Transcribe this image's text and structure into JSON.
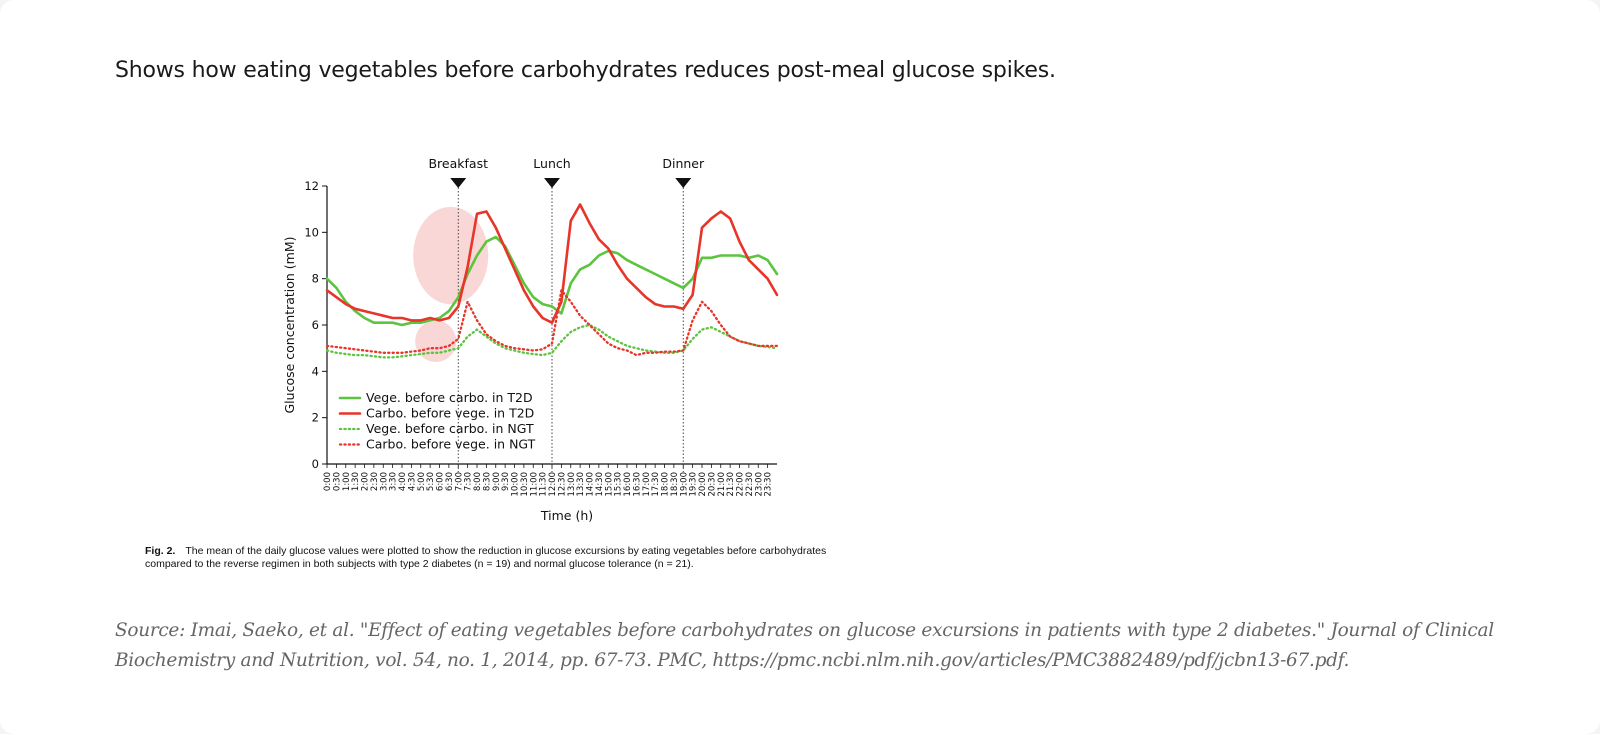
{
  "intro_text": "Shows how eating vegetables before carbohydrates reduces post-meal glucose spikes.",
  "figure_caption": {
    "label": "Fig. 2.",
    "line1": "The mean of the daily glucose values were plotted to show the reduction in glucose excursions by eating vegetables before carbohydrates",
    "line2": "compared to the reverse regimen in both subjects with type 2 diabetes (n = 19) and normal glucose tolerance (n = 21)."
  },
  "source": {
    "line1": "Source: Imai, Saeko, et al. \"Effect of eating vegetables before carbohydrates on glucose excursions in patients with type 2 diabetes.\" Journal of Clinical",
    "line2": "Biochemistry and Nutrition, vol. 54, no. 1, 2014, pp. 67-73. PMC, https://pmc.ncbi.nlm.nih.gov/articles/PMC3882489/pdf/jcbn13-67.pdf."
  },
  "colors": {
    "vege": "#5cc43f",
    "carbo": "#e8352a",
    "highlight": "#f8caca"
  },
  "chart_data": {
    "type": "line",
    "xlabel": "Time (h)",
    "ylabel": "Glucose concentration (mM)",
    "xlim": [
      0,
      24
    ],
    "ylim": [
      0,
      12
    ],
    "yticks": [
      0,
      2,
      4,
      6,
      8,
      10,
      12
    ],
    "xtick_labels": [
      "0:00",
      "0:30",
      "1:00",
      "1:30",
      "2:00",
      "2:30",
      "3:00",
      "3:30",
      "4:00",
      "4:30",
      "5:00",
      "5:30",
      "6:00",
      "6:30",
      "7:00",
      "7:30",
      "8:00",
      "8:30",
      "9:00",
      "9:30",
      "10:00",
      "10:30",
      "11:00",
      "11:30",
      "12:00",
      "12:30",
      "13:00",
      "13:30",
      "14:00",
      "14:30",
      "15:00",
      "15:30",
      "16:00",
      "16:30",
      "17:00",
      "17:30",
      "18:00",
      "18:30",
      "19:00",
      "19:30",
      "20:00",
      "20:30",
      "21:00",
      "21:30",
      "22:00",
      "22:30",
      "23:00",
      "23:30"
    ],
    "meals": [
      {
        "label": "Breakfast",
        "time": 7.0
      },
      {
        "label": "Lunch",
        "time": 12.0
      },
      {
        "label": "Dinner",
        "time": 19.0
      }
    ],
    "highlights": [
      {
        "cx": 6.6,
        "cy": 9.0,
        "rx": 2.0,
        "ry": 2.1
      },
      {
        "cx": 5.8,
        "cy": 5.3,
        "rx": 1.1,
        "ry": 0.9
      }
    ],
    "series": [
      {
        "name": "Vege. before carbo. in T2D",
        "style": "solid",
        "color": "#5cc43f",
        "x": [
          0,
          0.5,
          1,
          1.5,
          2,
          2.5,
          3,
          3.5,
          4,
          4.5,
          5,
          5.5,
          6,
          6.5,
          7,
          7.5,
          8,
          8.5,
          9,
          9.5,
          10,
          10.5,
          11,
          11.5,
          12,
          12.5,
          13,
          13.5,
          14,
          14.5,
          15,
          15.5,
          16,
          16.5,
          17,
          17.5,
          18,
          18.5,
          19,
          19.5,
          20,
          20.5,
          21,
          21.5,
          22,
          22.5,
          23,
          23.5,
          24
        ],
        "y": [
          8.0,
          7.6,
          7.0,
          6.6,
          6.3,
          6.1,
          6.1,
          6.1,
          6.0,
          6.1,
          6.1,
          6.2,
          6.3,
          6.6,
          7.2,
          8.2,
          9.0,
          9.6,
          9.8,
          9.4,
          8.6,
          7.8,
          7.2,
          6.9,
          6.8,
          6.5,
          7.8,
          8.4,
          8.6,
          9.0,
          9.2,
          9.1,
          8.8,
          8.6,
          8.4,
          8.2,
          8.0,
          7.8,
          7.6,
          8.0,
          8.9,
          8.9,
          9.0,
          9.0,
          9.0,
          8.9,
          9.0,
          8.8,
          8.2
        ]
      },
      {
        "name": "Carbo. before vege. in T2D",
        "style": "solid",
        "color": "#e8352a",
        "x": [
          0,
          0.5,
          1,
          1.5,
          2,
          2.5,
          3,
          3.5,
          4,
          4.5,
          5,
          5.5,
          6,
          6.5,
          7,
          7.5,
          8,
          8.5,
          9,
          9.5,
          10,
          10.5,
          11,
          11.5,
          12,
          12.5,
          13,
          13.5,
          14,
          14.5,
          15,
          15.5,
          16,
          16.5,
          17,
          17.5,
          18,
          18.5,
          19,
          19.5,
          20,
          20.5,
          21,
          21.5,
          22,
          22.5,
          23,
          23.5,
          24
        ],
        "y": [
          7.5,
          7.2,
          6.9,
          6.7,
          6.6,
          6.5,
          6.4,
          6.3,
          6.3,
          6.2,
          6.2,
          6.3,
          6.2,
          6.3,
          6.8,
          8.5,
          10.8,
          10.9,
          10.2,
          9.3,
          8.4,
          7.5,
          6.8,
          6.3,
          6.1,
          7.0,
          10.5,
          11.2,
          10.4,
          9.7,
          9.3,
          8.6,
          8.0,
          7.6,
          7.2,
          6.9,
          6.8,
          6.8,
          6.7,
          7.3,
          10.2,
          10.6,
          10.9,
          10.6,
          9.6,
          8.8,
          8.4,
          8.0,
          7.3
        ]
      },
      {
        "name": "Vege. before carbo. in NGT",
        "style": "dotted",
        "color": "#5cc43f",
        "x": [
          0,
          0.5,
          1,
          1.5,
          2,
          2.5,
          3,
          3.5,
          4,
          4.5,
          5,
          5.5,
          6,
          6.5,
          7,
          7.5,
          8,
          8.5,
          9,
          9.5,
          10,
          10.5,
          11,
          11.5,
          12,
          12.5,
          13,
          13.5,
          14,
          14.5,
          15,
          15.5,
          16,
          16.5,
          17,
          17.5,
          18,
          18.5,
          19,
          19.5,
          20,
          20.5,
          21,
          21.5,
          22,
          22.5,
          23,
          23.5,
          24
        ],
        "y": [
          4.9,
          4.8,
          4.75,
          4.7,
          4.7,
          4.65,
          4.6,
          4.6,
          4.65,
          4.7,
          4.75,
          4.8,
          4.8,
          4.9,
          5.0,
          5.5,
          5.8,
          5.5,
          5.2,
          5.0,
          4.9,
          4.8,
          4.75,
          4.7,
          4.8,
          5.3,
          5.7,
          5.9,
          6.0,
          5.8,
          5.5,
          5.3,
          5.1,
          5.0,
          4.9,
          4.85,
          4.8,
          4.8,
          4.9,
          5.4,
          5.8,
          5.9,
          5.7,
          5.5,
          5.3,
          5.2,
          5.1,
          5.05,
          5.0
        ]
      },
      {
        "name": "Carbo. before vege. in NGT",
        "style": "dotted",
        "color": "#e8352a",
        "x": [
          0,
          0.5,
          1,
          1.5,
          2,
          2.5,
          3,
          3.5,
          4,
          4.5,
          5,
          5.5,
          6,
          6.5,
          7,
          7.5,
          8,
          8.5,
          9,
          9.5,
          10,
          10.5,
          11,
          11.5,
          12,
          12.5,
          13,
          13.5,
          14,
          14.5,
          15,
          15.5,
          16,
          16.5,
          17,
          17.5,
          18,
          18.5,
          19,
          19.5,
          20,
          20.5,
          21,
          21.5,
          22,
          22.5,
          23,
          23.5,
          24
        ],
        "y": [
          5.1,
          5.05,
          5.0,
          4.95,
          4.9,
          4.85,
          4.8,
          4.8,
          4.8,
          4.85,
          4.9,
          5.0,
          5.0,
          5.1,
          5.4,
          7.0,
          6.2,
          5.6,
          5.3,
          5.1,
          5.0,
          4.95,
          4.9,
          4.95,
          5.2,
          7.5,
          7.0,
          6.4,
          6.0,
          5.6,
          5.2,
          5.0,
          4.9,
          4.7,
          4.8,
          4.8,
          4.85,
          4.85,
          4.9,
          6.2,
          7.0,
          6.6,
          6.0,
          5.5,
          5.3,
          5.2,
          5.1,
          5.1,
          5.1
        ]
      }
    ]
  }
}
